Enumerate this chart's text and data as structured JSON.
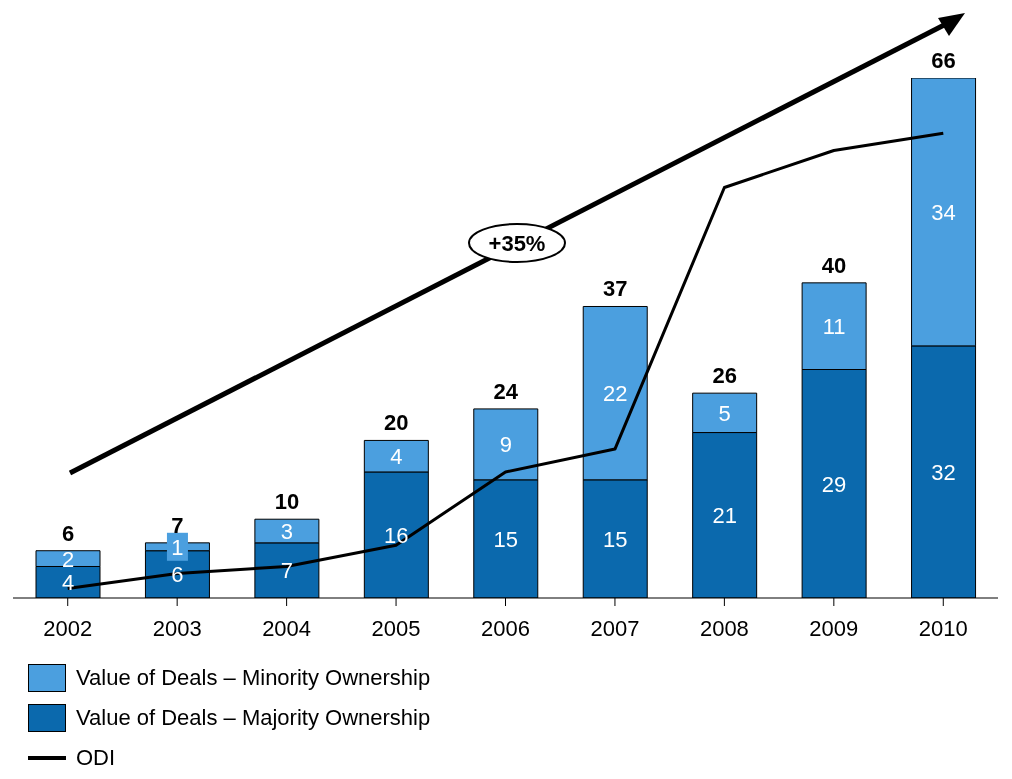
{
  "chart_data": {
    "type": "bar",
    "stacked": true,
    "legend": "bottom left",
    "categories": [
      "2002",
      "2003",
      "2004",
      "2005",
      "2006",
      "2007",
      "2008",
      "2009",
      "2010"
    ],
    "series": [
      {
        "name": "Value of Deals – Majority Ownership",
        "color": "#0b69ad",
        "values": [
          4,
          6,
          7,
          16,
          15,
          15,
          21,
          29,
          32
        ],
        "value_labels": [
          "4",
          "6",
          "7",
          "16",
          "15",
          "15",
          "21",
          "29",
          "32"
        ]
      },
      {
        "name": "Value of Deals – Minority Ownership",
        "color": "#4b9fdf",
        "values": [
          2,
          1,
          3,
          4,
          9,
          22,
          5,
          11,
          34
        ],
        "value_labels": [
          "2",
          "1",
          "3",
          "4",
          "9",
          "22",
          "5",
          "11",
          "34"
        ]
      },
      {
        "name": "ODI",
        "type": "line",
        "color": "#000000",
        "values": [
          1.2,
          3.1,
          4.0,
          6.7,
          16.0,
          18.9,
          52.1,
          56.8,
          59.0
        ]
      }
    ],
    "totals": [
      "6",
      "7",
      "10",
      "20",
      "24",
      "37",
      "26",
      "40",
      "66"
    ],
    "annotations": [
      "+35%"
    ]
  }
}
